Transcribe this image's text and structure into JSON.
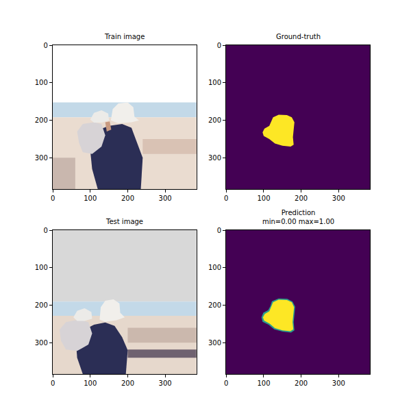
{
  "chart_data": [
    {
      "type": "image",
      "title": "Train image",
      "xlim": [
        -0.5,
        383.5
      ],
      "ylim": [
        383.5,
        -0.5
      ],
      "xticks": [
        0,
        100,
        200,
        300
      ],
      "yticks": [
        0,
        100,
        200,
        300
      ],
      "regions": [
        {
          "color": "#ffffff",
          "points": [
            [
              -0.5,
              -0.5
            ],
            [
              383.5,
              -0.5
            ],
            [
              383.5,
              152
            ],
            [
              -0.5,
              152
            ]
          ]
        },
        {
          "color": "#c3d9e8",
          "points": [
            [
              -0.5,
              152
            ],
            [
              383.5,
              152
            ],
            [
              383.5,
              192
            ],
            [
              -0.5,
              192
            ]
          ]
        },
        {
          "color": "#eadcd0",
          "points": [
            [
              -0.5,
              192
            ],
            [
              383.5,
              192
            ],
            [
              383.5,
              383.5
            ],
            [
              -0.5,
              383.5
            ]
          ]
        },
        {
          "color": "#d9c2b4",
          "points": [
            [
              240,
              250
            ],
            [
              383.5,
              250
            ],
            [
              383.5,
              290
            ],
            [
              240,
              290
            ]
          ]
        },
        {
          "color": "#c9b7ae",
          "points": [
            [
              -0.5,
              300
            ],
            [
              60,
              300
            ],
            [
              60,
              383.5
            ],
            [
              -0.5,
              383.5
            ]
          ]
        },
        {
          "color": "#2b2e55",
          "points": [
            [
              110,
              230
            ],
            [
              150,
              215
            ],
            [
              185,
              210
            ],
            [
              210,
              220
            ],
            [
              225,
              260
            ],
            [
              240,
              300
            ],
            [
              235,
              383.5
            ],
            [
              120,
              383.5
            ],
            [
              105,
              330
            ],
            [
              100,
              280
            ]
          ]
        },
        {
          "color": "#f1efeb",
          "points": [
            [
              155,
              200
            ],
            [
              160,
              170
            ],
            [
              175,
              155
            ],
            [
              200,
              152
            ],
            [
              215,
              165
            ],
            [
              218,
              190
            ],
            [
              230,
              200
            ],
            [
              210,
              205
            ],
            [
              175,
              208
            ]
          ]
        },
        {
          "color": "#d7d3d6",
          "points": [
            [
              65,
              230
            ],
            [
              80,
              210
            ],
            [
              110,
              205
            ],
            [
              130,
              210
            ],
            [
              140,
              240
            ],
            [
              130,
              270
            ],
            [
              105,
              290
            ],
            [
              80,
              285
            ],
            [
              70,
              260
            ]
          ]
        },
        {
          "color": "#ecebe8",
          "points": [
            [
              100,
              198
            ],
            [
              110,
              180
            ],
            [
              130,
              173
            ],
            [
              148,
              182
            ],
            [
              150,
              200
            ],
            [
              130,
              206
            ],
            [
              110,
              206
            ]
          ]
        },
        {
          "color": "#c99a80",
          "points": [
            [
              140,
              205
            ],
            [
              152,
              203
            ],
            [
              156,
              225
            ],
            [
              144,
              230
            ]
          ]
        }
      ]
    },
    {
      "type": "mask",
      "title": "Ground-truth",
      "xlim": [
        -0.5,
        383.5
      ],
      "ylim": [
        383.5,
        -0.5
      ],
      "xticks": [
        0,
        100,
        200,
        300
      ],
      "yticks": [
        0,
        100,
        200,
        300
      ],
      "regions": [
        {
          "color": "#440154",
          "points": [
            [
              -0.5,
              -0.5
            ],
            [
              383.5,
              -0.5
            ],
            [
              383.5,
              383.5
            ],
            [
              -0.5,
              383.5
            ]
          ]
        },
        {
          "color": "#fde725",
          "points": [
            [
              125,
              192
            ],
            [
              140,
              185
            ],
            [
              162,
              186
            ],
            [
              175,
              192
            ],
            [
              182,
              205
            ],
            [
              180,
              225
            ],
            [
              178,
              245
            ],
            [
              180,
              265
            ],
            [
              172,
              270
            ],
            [
              150,
              268
            ],
            [
              130,
              262
            ],
            [
              115,
              250
            ],
            [
              100,
              242
            ],
            [
              97,
              232
            ],
            [
              102,
              222
            ],
            [
              115,
              215
            ],
            [
              120,
              205
            ]
          ]
        }
      ]
    },
    {
      "type": "image",
      "title": "Test image",
      "xlim": [
        -0.5,
        383.5
      ],
      "ylim": [
        383.5,
        -0.5
      ],
      "xticks": [
        0,
        100,
        200,
        300
      ],
      "yticks": [
        0,
        100,
        200,
        300
      ],
      "regions": [
        {
          "color": "#d8d8d8",
          "points": [
            [
              -0.5,
              -0.5
            ],
            [
              383.5,
              -0.5
            ],
            [
              383.5,
              190
            ],
            [
              -0.5,
              190
            ]
          ]
        },
        {
          "color": "#c3d9e8",
          "points": [
            [
              -0.5,
              190
            ],
            [
              383.5,
              190
            ],
            [
              383.5,
              228
            ],
            [
              -0.5,
              228
            ]
          ]
        },
        {
          "color": "#e6d8cc",
          "points": [
            [
              -0.5,
              228
            ],
            [
              383.5,
              228
            ],
            [
              383.5,
              383.5
            ],
            [
              -0.5,
              383.5
            ]
          ]
        },
        {
          "color": "#cbb8ad",
          "points": [
            [
              200,
              260
            ],
            [
              383.5,
              260
            ],
            [
              383.5,
              300
            ],
            [
              200,
              300
            ]
          ]
        },
        {
          "color": "#6f6270",
          "points": [
            [
              200,
              318
            ],
            [
              383.5,
              318
            ],
            [
              383.5,
              340
            ],
            [
              200,
              340
            ]
          ]
        },
        {
          "color": "#2b2e55",
          "points": [
            [
              75,
              270
            ],
            [
              110,
              252
            ],
            [
              140,
              246
            ],
            [
              165,
              255
            ],
            [
              185,
              285
            ],
            [
              200,
              320
            ],
            [
              195,
              383.5
            ],
            [
              80,
              383.5
            ],
            [
              65,
              340
            ],
            [
              62,
              300
            ]
          ]
        },
        {
          "color": "#f1efeb",
          "points": [
            [
              125,
              238
            ],
            [
              128,
              205
            ],
            [
              140,
              188
            ],
            [
              162,
              184
            ],
            [
              178,
              195
            ],
            [
              180,
              220
            ],
            [
              192,
              232
            ],
            [
              170,
              240
            ],
            [
              140,
              244
            ]
          ]
        },
        {
          "color": "#d7d3d6",
          "points": [
            [
              18,
              265
            ],
            [
              35,
              245
            ],
            [
              70,
              238
            ],
            [
              95,
              245
            ],
            [
              105,
              275
            ],
            [
              95,
              305
            ],
            [
              65,
              322
            ],
            [
              35,
              318
            ],
            [
              22,
              295
            ]
          ]
        },
        {
          "color": "#ecebe8",
          "points": [
            [
              55,
              232
            ],
            [
              65,
              215
            ],
            [
              85,
              208
            ],
            [
              103,
              218
            ],
            [
              105,
              236
            ],
            [
              85,
              242
            ],
            [
              65,
              242
            ]
          ]
        }
      ]
    },
    {
      "type": "mask",
      "title": "Prediction\nmin=0.00 max=1.00",
      "xlim": [
        -0.5,
        383.5
      ],
      "ylim": [
        383.5,
        -0.5
      ],
      "xticks": [
        0,
        100,
        200,
        300
      ],
      "yticks": [
        0,
        100,
        200,
        300
      ],
      "regions": [
        {
          "color": "#440154",
          "points": [
            [
              -0.5,
              -0.5
            ],
            [
              383.5,
              -0.5
            ],
            [
              383.5,
              383.5
            ],
            [
              -0.5,
              383.5
            ]
          ]
        },
        {
          "color": "#2a9d8f",
          "points": [
            [
              122,
              189
            ],
            [
              140,
              182
            ],
            [
              163,
              183
            ],
            [
              177,
              190
            ],
            [
              184,
              204
            ],
            [
              182,
              225
            ],
            [
              180,
              245
            ],
            [
              182,
              267
            ],
            [
              173,
              273
            ],
            [
              150,
              270
            ],
            [
              128,
              264
            ],
            [
              113,
              252
            ],
            [
              97,
              244
            ],
            [
              94,
              232
            ],
            [
              99,
              220
            ],
            [
              112,
              213
            ],
            [
              118,
              202
            ]
          ]
        },
        {
          "color": "#fde725",
          "points": [
            [
              125,
              192
            ],
            [
              140,
              185
            ],
            [
              162,
              186
            ],
            [
              175,
              192
            ],
            [
              181,
              205
            ],
            [
              179,
              225
            ],
            [
              177,
              245
            ],
            [
              179,
              264
            ],
            [
              171,
              269
            ],
            [
              150,
              267
            ],
            [
              130,
              261
            ],
            [
              116,
              249
            ],
            [
              101,
              241
            ],
            [
              98,
              232
            ],
            [
              103,
              223
            ],
            [
              115,
              216
            ],
            [
              120,
              205
            ]
          ]
        }
      ]
    }
  ]
}
